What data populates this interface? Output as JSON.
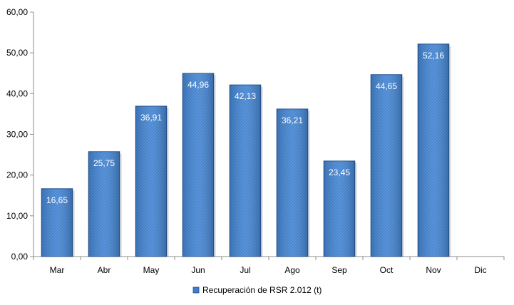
{
  "chart_data": {
    "type": "bar",
    "categories": [
      "Mar",
      "Abr",
      "May",
      "Jun",
      "Jul",
      "Ago",
      "Sep",
      "Oct",
      "Nov",
      "Dic"
    ],
    "series": [
      {
        "name": "Recuperación de RSR 2.012 (t)",
        "values": [
          16.65,
          25.75,
          36.91,
          44.96,
          42.13,
          36.21,
          23.45,
          44.65,
          52.16,
          null
        ],
        "labels": [
          "16,65",
          "25,75",
          "36,91",
          "44,96",
          "42,13",
          "36,21",
          "23,45",
          "44,65",
          "52,16",
          ""
        ]
      }
    ],
    "ylim": [
      0,
      60
    ],
    "yticks": [
      0,
      10,
      20,
      30,
      40,
      50,
      60
    ],
    "ytick_labels": [
      "0,00",
      "10,00",
      "20,00",
      "30,00",
      "40,00",
      "50,00",
      "60,00"
    ],
    "grid": false,
    "legend": "bottom",
    "colors": {
      "bar": "#3d7fce",
      "bar_edge": "#1f4f8f",
      "axis": "#8c8c8c"
    }
  }
}
